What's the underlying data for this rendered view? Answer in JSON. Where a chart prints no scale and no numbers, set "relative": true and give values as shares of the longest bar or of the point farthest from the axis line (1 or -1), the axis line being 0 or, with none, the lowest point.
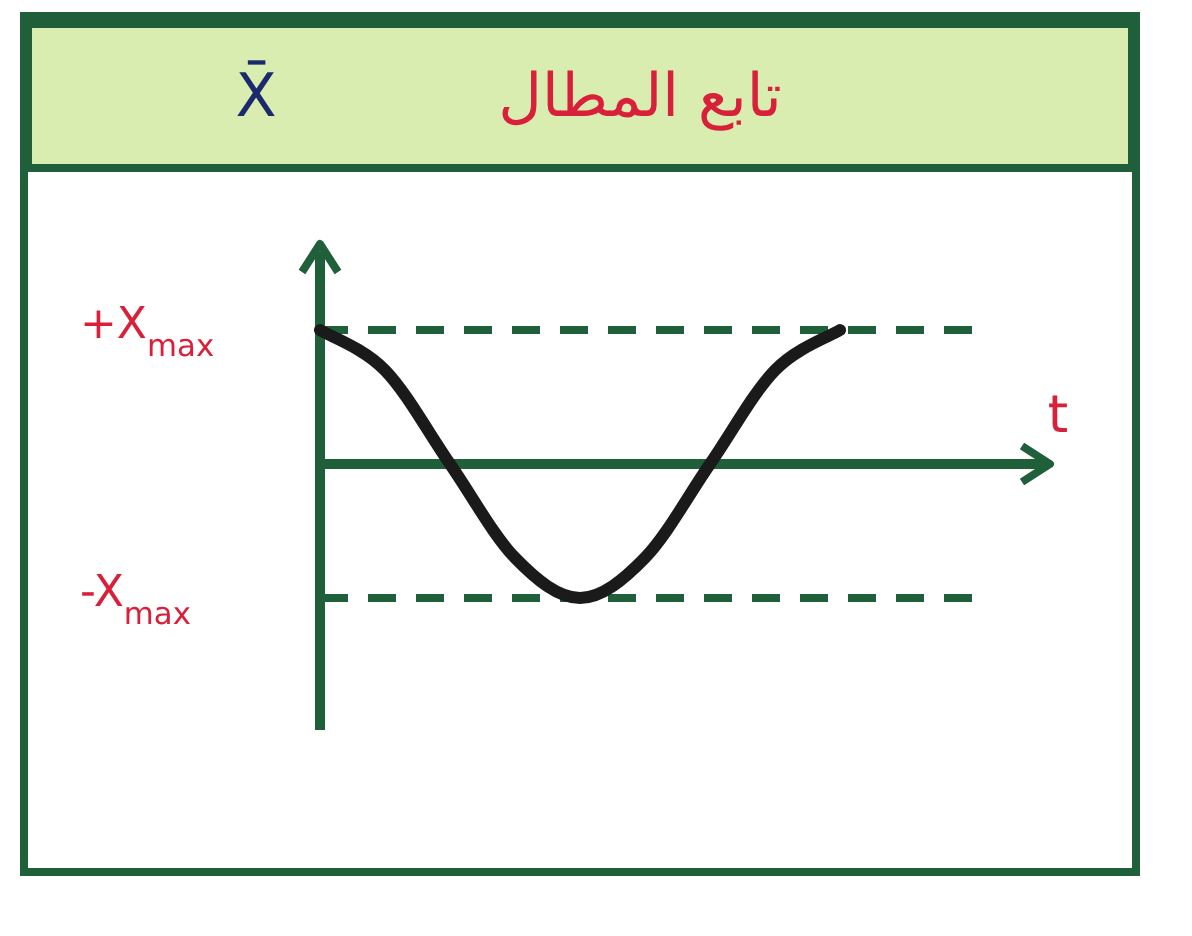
{
  "chart_data": {
    "type": "line",
    "title": "تابع المطال",
    "subtitle": "X̄",
    "xlabel": "t",
    "relative": true,
    "categories": [
      null,
      null,
      null,
      null,
      null,
      null,
      null,
      null,
      null
    ],
    "series": [
      {
        "color": "#1a1a1a",
        "values": [
          1,
          0.7,
          0,
          -0.7,
          -1,
          -0.7,
          0,
          0.7,
          1
        ]
      }
    ],
    "ref_lines": [
      {
        "axis": "y",
        "value": 1,
        "label": "+X$_{max}$",
        "color": "#1f5f3a",
        "line_style": "dashed"
      },
      {
        "axis": "y",
        "value": -1,
        "label": "-X$_{max}$",
        "color": "#1f5f3a",
        "line_style": "dashed"
      }
    ]
  }
}
